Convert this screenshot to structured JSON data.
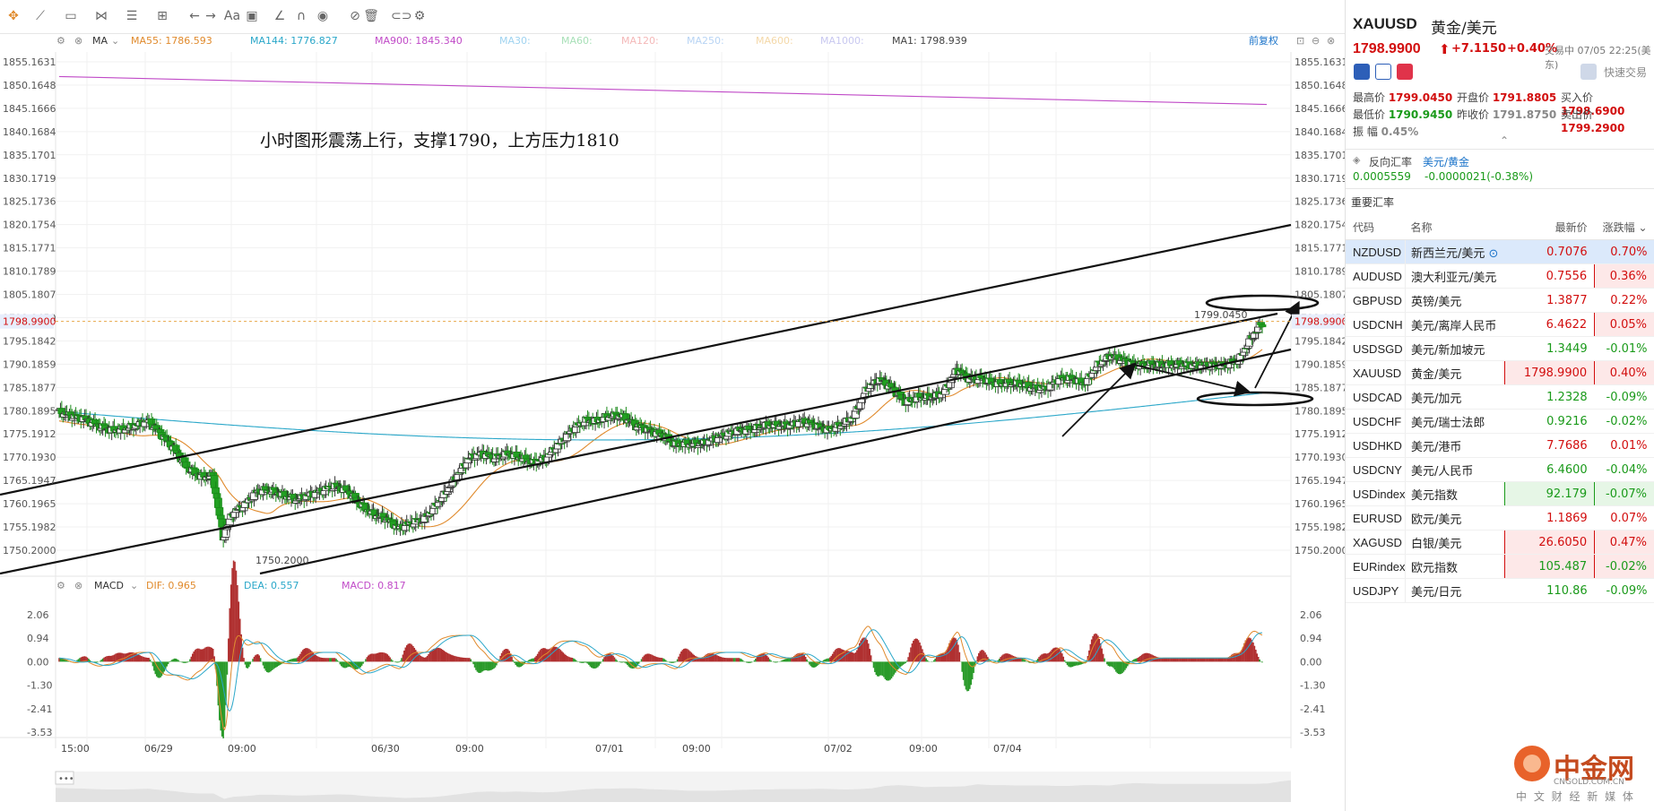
{
  "toolbar": {
    "icons": [
      "crosshair-icon",
      "line-tool-icon",
      "rect-tool-icon",
      "fib-tool-icon",
      "list-tool-icon",
      "measure-tool-icon",
      "undo-icon",
      "redo-icon",
      "text-tool-icon",
      "comment-icon",
      "ruler-icon",
      "magnet-icon",
      "eye-icon",
      "delete-marks-icon",
      "trash-icon",
      "link-icon",
      "gear-icon"
    ],
    "text_label": "Aa"
  },
  "indicator_bar": {
    "main": "MA",
    "items": [
      {
        "label": "MA55: 1786.593",
        "color": "#e08a2c"
      },
      {
        "label": "MA144: 1776.827",
        "color": "#2aa7c9"
      },
      {
        "label": "MA900: 1845.340",
        "color": "#c04ac7"
      },
      {
        "label": "MA30:",
        "color": "#9fd3f0"
      },
      {
        "label": "MA60:",
        "color": "#a8e0b8"
      },
      {
        "label": "MA120:",
        "color": "#f4b8b8"
      },
      {
        "label": "MA250:",
        "color": "#b8d4f4"
      },
      {
        "label": "MA600:",
        "color": "#f4d8a8"
      },
      {
        "label": "MA1000:",
        "color": "#c8c8f0"
      },
      {
        "label": "MA1: 1798.939",
        "color": "#444444"
      }
    ],
    "restore_label": "前复权"
  },
  "annotation": "小时图形震荡上行，支撑1790，上方压力1810",
  "price_axis": {
    "ticks": [
      "1855.1631",
      "1850.1648",
      "1845.1666",
      "1840.1684",
      "1835.1701",
      "1830.1719",
      "1825.1736",
      "1820.1754",
      "1815.1771",
      "1810.1789",
      "1805.1807",
      "1799.0450",
      "1795.1842",
      "1790.1859",
      "1785.1877",
      "1780.1895",
      "1775.1912",
      "1770.1930",
      "1765.1947",
      "1760.1965",
      "1755.1982",
      "1750.2000"
    ],
    "current_price": "1798.9900",
    "high_label": "1799.0450",
    "low_label": "1750.2000"
  },
  "macd_bar": {
    "main": "MACD",
    "items": [
      {
        "label": "DIF: 0.965",
        "color": "#e08a2c"
      },
      {
        "label": "DEA: 0.557",
        "color": "#2aa7c9"
      },
      {
        "label": "MACD: 0.817",
        "color": "#c04ac7"
      }
    ],
    "ticks": [
      "2.06",
      "0.94",
      "0.00",
      "-1.30",
      "-2.41",
      "-3.53"
    ]
  },
  "time_axis": [
    "15:00",
    "06/29",
    "09:00",
    "06/30",
    "09:00",
    "07/01",
    "09:00",
    "07/02",
    "09:00",
    "07/04"
  ],
  "scroll_handle": "•••",
  "quote": {
    "symbol": "XAUUSD",
    "name": "黄金/美元",
    "price": "1798.9900",
    "arrow": "⬆",
    "change": "+7.1150",
    "percent": "+0.40%",
    "status": "交易中 07/05 22:25(美东)",
    "quick_trade": "快速交易",
    "stats": [
      {
        "label": "最高价",
        "value": "1799.0450",
        "color": "red"
      },
      {
        "label": "开盘价",
        "value": "1791.8805",
        "color": "red"
      },
      {
        "label": "买入价",
        "value": "1798.6900",
        "color": "red"
      },
      {
        "label": "最低价",
        "value": "1790.9450",
        "color": "green"
      },
      {
        "label": "昨收价",
        "value": "1791.8750",
        "color": "gray"
      },
      {
        "label": "卖出价",
        "value": "1799.2900",
        "color": "red"
      },
      {
        "label": "振  幅",
        "value": "0.45%",
        "color": "gray"
      }
    ],
    "reverse": {
      "label": "反向汇率",
      "pair": "美元/黄金",
      "value": "0.0005559",
      "change": "-0.0000021(-0.38%)"
    }
  },
  "rates": {
    "title": "重要汇率",
    "headers": [
      "代码",
      "名称",
      "最新价",
      "涨跌幅"
    ],
    "rows": [
      {
        "code": "NZDUSD",
        "name": "新西兰元/美元",
        "price": "0.7076",
        "pct": "0.70%",
        "dir": "up",
        "box": "",
        "hl": true
      },
      {
        "code": "AUDUSD",
        "name": "澳大利亚元/美元",
        "price": "0.7556",
        "pct": "0.36%",
        "dir": "up",
        "box": "pct",
        "hl": false
      },
      {
        "code": "GBPUSD",
        "name": "英镑/美元",
        "price": "1.3877",
        "pct": "0.22%",
        "dir": "up",
        "box": "",
        "hl": false
      },
      {
        "code": "USDCNH",
        "name": "美元/离岸人民币",
        "price": "6.4622",
        "pct": "0.05%",
        "dir": "up",
        "box": "pct",
        "hl": false
      },
      {
        "code": "USDSGD",
        "name": "美元/新加坡元",
        "price": "1.3449",
        "pct": "-0.01%",
        "dir": "down",
        "box": "",
        "hl": false
      },
      {
        "code": "XAUUSD",
        "name": "黄金/美元",
        "price": "1798.9900",
        "pct": "0.40%",
        "dir": "up",
        "box": "both",
        "hl": false
      },
      {
        "code": "USDCAD",
        "name": "美元/加元",
        "price": "1.2328",
        "pct": "-0.09%",
        "dir": "down",
        "box": "",
        "hl": false
      },
      {
        "code": "USDCHF",
        "name": "美元/瑞士法郎",
        "price": "0.9216",
        "pct": "-0.02%",
        "dir": "down",
        "box": "",
        "hl": false
      },
      {
        "code": "USDHKD",
        "name": "美元/港币",
        "price": "7.7686",
        "pct": "0.01%",
        "dir": "up",
        "box": "",
        "hl": false
      },
      {
        "code": "USDCNY",
        "name": "美元/人民币",
        "price": "6.4600",
        "pct": "-0.04%",
        "dir": "down",
        "box": "",
        "hl": false
      },
      {
        "code": "USDindex",
        "name": "美元指数",
        "price": "92.179",
        "pct": "-0.07%",
        "dir": "down",
        "box": "gboth",
        "hl": false
      },
      {
        "code": "EURUSD",
        "name": "欧元/美元",
        "price": "1.1869",
        "pct": "0.07%",
        "dir": "up",
        "box": "",
        "hl": false
      },
      {
        "code": "XAGUSD",
        "name": "白银/美元",
        "price": "26.6050",
        "pct": "0.47%",
        "dir": "up",
        "box": "both",
        "hl": false
      },
      {
        "code": "EURindex",
        "name": "欧元指数",
        "price": "105.487",
        "pct": "-0.02%",
        "dir": "down",
        "box": "both",
        "hl": false
      },
      {
        "code": "USDJPY",
        "name": "美元/日元",
        "price": "110.86",
        "pct": "-0.09%",
        "dir": "down",
        "box": "",
        "hl": false
      }
    ]
  },
  "watermark": {
    "brand": "中金网",
    "domain": "CNGOLD.COM.CN",
    "tagline": "中 文 财 经 新 媒 体"
  },
  "colors": {
    "up": "#d20e0e",
    "down": "#1a9a1a",
    "candle_up": "#ffffff",
    "candle_down": "#22a022",
    "ma55": "#e08a2c",
    "ma144": "#2aa7c9",
    "ma900": "#c04ac7"
  }
}
